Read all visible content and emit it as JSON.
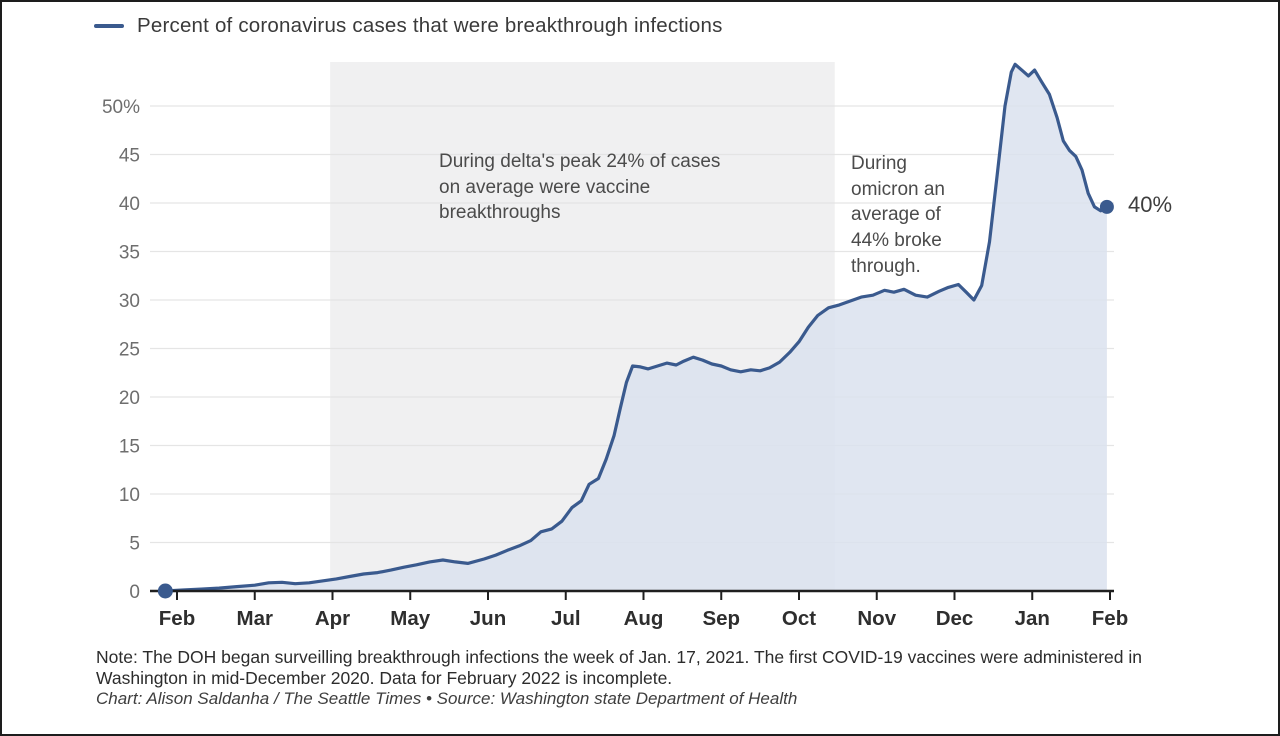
{
  "title": {
    "text": "Percent of coronavirus cases that were breakthrough infections"
  },
  "chart_data": {
    "type": "area",
    "title": "Percent of coronavirus cases that were breakthrough infections",
    "x_axis": {
      "tick_labels": [
        "Feb",
        "Mar",
        "Apr",
        "May",
        "Jun",
        "Jul",
        "Aug",
        "Sep",
        "Oct",
        "Nov",
        "Dec",
        "Jan",
        "Feb"
      ]
    },
    "y_axis": {
      "tick_values": [
        0,
        5,
        10,
        15,
        20,
        25,
        30,
        35,
        40,
        45,
        50
      ],
      "top_tick_label": "50%",
      "min": 0,
      "max": 54.5,
      "gridlines": true
    },
    "series": [
      {
        "name": "Percent of coronavirus cases that were breakthrough infections",
        "points": [
          [
            -0.15,
            0.0
          ],
          [
            0.08,
            0.1
          ],
          [
            0.31,
            0.2
          ],
          [
            0.54,
            0.3
          ],
          [
            0.77,
            0.45
          ],
          [
            1.0,
            0.6
          ],
          [
            1.18,
            0.85
          ],
          [
            1.35,
            0.9
          ],
          [
            1.52,
            0.75
          ],
          [
            1.7,
            0.85
          ],
          [
            1.88,
            1.05
          ],
          [
            2.05,
            1.25
          ],
          [
            2.22,
            1.5
          ],
          [
            2.4,
            1.75
          ],
          [
            2.58,
            1.9
          ],
          [
            2.75,
            2.15
          ],
          [
            2.92,
            2.45
          ],
          [
            3.08,
            2.7
          ],
          [
            3.25,
            3.0
          ],
          [
            3.42,
            3.2
          ],
          [
            3.58,
            3.0
          ],
          [
            3.74,
            2.85
          ],
          [
            3.95,
            3.3
          ],
          [
            4.1,
            3.7
          ],
          [
            4.25,
            4.2
          ],
          [
            4.4,
            4.65
          ],
          [
            4.55,
            5.2
          ],
          [
            4.68,
            6.1
          ],
          [
            4.82,
            6.4
          ],
          [
            4.95,
            7.2
          ],
          [
            5.08,
            8.6
          ],
          [
            5.2,
            9.3
          ],
          [
            5.3,
            11.0
          ],
          [
            5.42,
            11.6
          ],
          [
            5.52,
            13.6
          ],
          [
            5.62,
            16.0
          ],
          [
            5.7,
            18.8
          ],
          [
            5.78,
            21.5
          ],
          [
            5.86,
            23.2
          ],
          [
            5.96,
            23.1
          ],
          [
            6.06,
            22.9
          ],
          [
            6.18,
            23.2
          ],
          [
            6.3,
            23.5
          ],
          [
            6.42,
            23.3
          ],
          [
            6.52,
            23.7
          ],
          [
            6.64,
            24.1
          ],
          [
            6.76,
            23.8
          ],
          [
            6.88,
            23.4
          ],
          [
            7.0,
            23.2
          ],
          [
            7.12,
            22.8
          ],
          [
            7.25,
            22.6
          ],
          [
            7.38,
            22.8
          ],
          [
            7.5,
            22.7
          ],
          [
            7.62,
            23.0
          ],
          [
            7.75,
            23.6
          ],
          [
            7.88,
            24.6
          ],
          [
            8.0,
            25.7
          ],
          [
            8.12,
            27.2
          ],
          [
            8.24,
            28.4
          ],
          [
            8.38,
            29.2
          ],
          [
            8.52,
            29.5
          ],
          [
            8.66,
            29.9
          ],
          [
            8.8,
            30.3
          ],
          [
            8.95,
            30.5
          ],
          [
            9.1,
            31.0
          ],
          [
            9.22,
            30.8
          ],
          [
            9.35,
            31.1
          ],
          [
            9.5,
            30.5
          ],
          [
            9.65,
            30.3
          ],
          [
            9.8,
            30.9
          ],
          [
            9.92,
            31.3
          ],
          [
            10.05,
            31.6
          ],
          [
            10.15,
            30.8
          ],
          [
            10.25,
            30.0
          ],
          [
            10.35,
            31.5
          ],
          [
            10.45,
            36.0
          ],
          [
            10.55,
            43.0
          ],
          [
            10.65,
            50.0
          ],
          [
            10.73,
            53.5
          ],
          [
            10.78,
            54.3
          ],
          [
            10.88,
            53.6
          ],
          [
            10.95,
            53.1
          ],
          [
            11.03,
            53.7
          ],
          [
            11.12,
            52.5
          ],
          [
            11.22,
            51.2
          ],
          [
            11.32,
            48.8
          ],
          [
            11.4,
            46.4
          ],
          [
            11.48,
            45.4
          ],
          [
            11.56,
            44.8
          ],
          [
            11.64,
            43.4
          ],
          [
            11.72,
            41.0
          ],
          [
            11.8,
            39.6
          ],
          [
            11.88,
            39.2
          ],
          [
            11.96,
            39.6
          ]
        ]
      }
    ],
    "regions": [
      {
        "name": "delta-period",
        "x_from": 1.97,
        "x_to": 8.46
      }
    ],
    "annotations": [
      {
        "id": "delta",
        "text": "During delta's peak 24% of cases on average were vaccine breakthroughs"
      },
      {
        "id": "omicron",
        "text": "During omicron an average of 44% broke through."
      }
    ],
    "end_label": "40%",
    "legend_position": "top-left",
    "colors": {
      "line": "#3a5a8e",
      "area_fill": "#dae2ef",
      "region_fill": "#f0f0f1",
      "gridline": "#e3e3e3",
      "axis": "#1f1f1f",
      "y_tick_text": "#6e6e6e",
      "x_tick_text": "#2e2e2e"
    }
  },
  "footer": {
    "note": "Note: The DOH began surveilling breakthrough infections the week of Jan. 17, 2021. The first COVID-19 vaccines were administered in Washington in mid-December 2020. Data for February 2022 is incomplete.",
    "credit": "Chart: Alison Saldanha / The Seattle Times • Source: Washington state Department of Health"
  }
}
